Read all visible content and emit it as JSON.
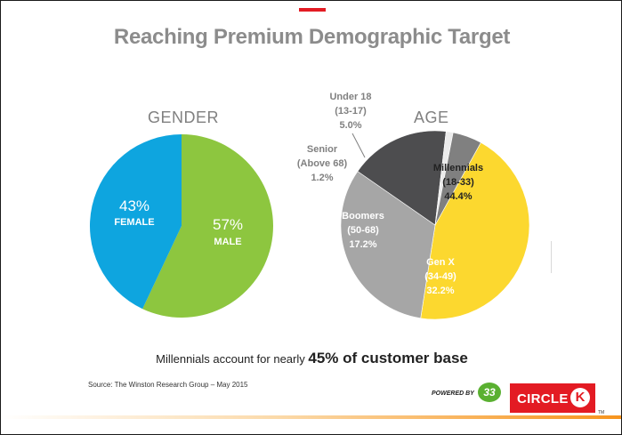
{
  "title": "Reaching Premium Demographic Target",
  "chart_data": [
    {
      "type": "pie",
      "title": "GENDER",
      "slices": [
        {
          "label": "MALE",
          "value": 57,
          "value_label": "57%",
          "color": "#8dc63f"
        },
        {
          "label": "FEMALE",
          "value": 43,
          "value_label": "43%",
          "color": "#0ea5df"
        }
      ]
    },
    {
      "type": "pie",
      "title": "AGE",
      "slices": [
        {
          "label": "Millennials",
          "range": "(18-33)",
          "value": 44.4,
          "value_label": "44.4%",
          "color": "#fcd82f"
        },
        {
          "label": "Gen X",
          "range": "(34-49)",
          "value": 32.2,
          "value_label": "32.2%",
          "color": "#a6a6a6"
        },
        {
          "label": "Boomers",
          "range": "(50-68)",
          "value": 17.2,
          "value_label": "17.2%",
          "color": "#4d4d4f"
        },
        {
          "label": "Senior",
          "range": "(Above 68)",
          "value": 1.2,
          "value_label": "1.2%",
          "color": "#ebebeb"
        },
        {
          "label": "Under 18",
          "range": "(13-17)",
          "value": 5.0,
          "value_label": "5.0%",
          "color": "#808080"
        }
      ]
    }
  ],
  "caption": {
    "prefix": "Millennials account for nearly ",
    "highlight": "45% of customer base"
  },
  "source": "Source: The Winston Research Group – May 2015",
  "footer": {
    "powered_by": "POWERED BY",
    "badge": "33",
    "logo": "CIRCLE",
    "logo_k": "K",
    "tm": "TM"
  }
}
